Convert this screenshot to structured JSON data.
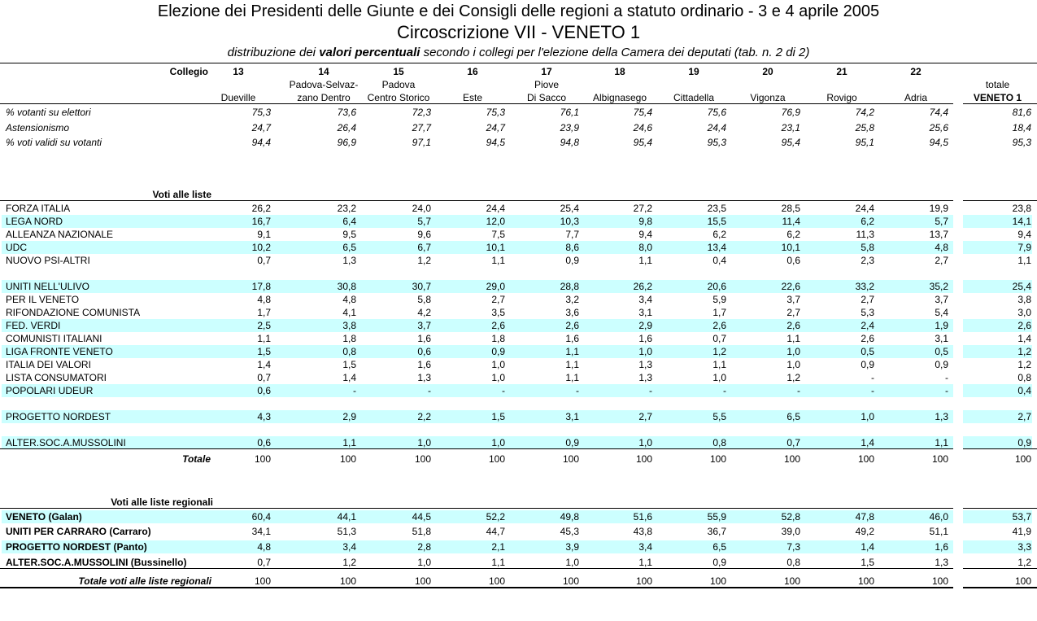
{
  "title": "Elezione dei Presidenti delle Giunte e dei Consigli delle regioni a statuto ordinario - 3 e 4 aprile 2005",
  "subtitle": "Circoscrizione VII - VENETO 1",
  "description_a": "distribuzione dei ",
  "description_b": "valori percentuali",
  "description_c": " secondo i collegi per l'elezione della Camera dei deputati (tab. n. 2 di 2)",
  "collegio_label": "Collegio",
  "columns": [
    {
      "num": "13",
      "l1": "",
      "l2": "Dueville"
    },
    {
      "num": "14",
      "l1": "Padova-Selvaz-",
      "l2": "zano Dentro"
    },
    {
      "num": "15",
      "l1": "Padova",
      "l2": "Centro Storico"
    },
    {
      "num": "16",
      "l1": "",
      "l2": "Este"
    },
    {
      "num": "17",
      "l1": "Piove",
      "l2": "Di Sacco"
    },
    {
      "num": "18",
      "l1": "",
      "l2": "Albignasego"
    },
    {
      "num": "19",
      "l1": "",
      "l2": "Cittadella"
    },
    {
      "num": "20",
      "l1": "",
      "l2": "Vigonza"
    },
    {
      "num": "21",
      "l1": "",
      "l2": "Rovigo"
    },
    {
      "num": "22",
      "l1": "",
      "l2": "Adria"
    }
  ],
  "total_col": {
    "l1": "totale",
    "l2": "VENETO 1"
  },
  "stats": [
    {
      "label": "% votanti su elettori",
      "values": [
        "75,3",
        "73,6",
        "72,3",
        "75,3",
        "76,1",
        "75,4",
        "75,6",
        "76,9",
        "74,2",
        "74,4"
      ],
      "total": "81,6"
    },
    {
      "label": "Astensionismo",
      "values": [
        "24,7",
        "26,4",
        "27,7",
        "24,7",
        "23,9",
        "24,6",
        "24,4",
        "23,1",
        "25,8",
        "25,6"
      ],
      "total": "18,4"
    },
    {
      "label": "% voti validi su votanti",
      "values": [
        "94,4",
        "96,9",
        "97,1",
        "94,5",
        "94,8",
        "95,4",
        "95,3",
        "95,4",
        "95,1",
        "94,5"
      ],
      "total": "95,3"
    }
  ],
  "lists_heading": "Voti alle liste",
  "lists": [
    {
      "label": "FORZA ITALIA",
      "values": [
        "26,2",
        "23,2",
        "24,0",
        "24,4",
        "25,4",
        "27,2",
        "23,5",
        "28,5",
        "24,4",
        "19,9"
      ],
      "total": "23,8"
    },
    {
      "label": "LEGA NORD",
      "values": [
        "16,7",
        "6,4",
        "5,7",
        "12,0",
        "10,3",
        "9,8",
        "15,5",
        "11,4",
        "6,2",
        "5,7"
      ],
      "total": "14,1"
    },
    {
      "label": "ALLEANZA NAZIONALE",
      "values": [
        "9,1",
        "9,5",
        "9,6",
        "7,5",
        "7,7",
        "9,4",
        "6,2",
        "6,2",
        "11,3",
        "13,7"
      ],
      "total": "9,4"
    },
    {
      "label": "UDC",
      "values": [
        "10,2",
        "6,5",
        "6,7",
        "10,1",
        "8,6",
        "8,0",
        "13,4",
        "10,1",
        "5,8",
        "4,8"
      ],
      "total": "7,9"
    },
    {
      "label": "NUOVO PSI-ALTRI",
      "values": [
        "0,7",
        "1,3",
        "1,2",
        "1,1",
        "0,9",
        "1,1",
        "0,4",
        "0,6",
        "2,3",
        "2,7"
      ],
      "total": "1,1"
    },
    {
      "label": "UNITI NELL'ULIVO",
      "values": [
        "17,8",
        "30,8",
        "30,7",
        "29,0",
        "28,8",
        "26,2",
        "20,6",
        "22,6",
        "33,2",
        "35,2"
      ],
      "total": "25,4"
    },
    {
      "label": "PER IL VENETO",
      "values": [
        "4,8",
        "4,8",
        "5,8",
        "2,7",
        "3,2",
        "3,4",
        "5,9",
        "3,7",
        "2,7",
        "3,7"
      ],
      "total": "3,8"
    },
    {
      "label": "RIFONDAZIONE COMUNISTA",
      "values": [
        "1,7",
        "4,1",
        "4,2",
        "3,5",
        "3,6",
        "3,1",
        "1,7",
        "2,7",
        "5,3",
        "5,4"
      ],
      "total": "3,0"
    },
    {
      "label": "FED. VERDI",
      "values": [
        "2,5",
        "3,8",
        "3,7",
        "2,6",
        "2,6",
        "2,9",
        "2,6",
        "2,6",
        "2,4",
        "1,9"
      ],
      "total": "2,6"
    },
    {
      "label": "COMUNISTI ITALIANI",
      "values": [
        "1,1",
        "1,8",
        "1,6",
        "1,8",
        "1,6",
        "1,6",
        "0,7",
        "1,1",
        "2,6",
        "3,1"
      ],
      "total": "1,4"
    },
    {
      "label": "LIGA FRONTE VENETO",
      "values": [
        "1,5",
        "0,8",
        "0,6",
        "0,9",
        "1,1",
        "1,0",
        "1,2",
        "1,0",
        "0,5",
        "0,5"
      ],
      "total": "1,2"
    },
    {
      "label": "ITALIA DEI VALORI",
      "values": [
        "1,4",
        "1,5",
        "1,6",
        "1,0",
        "1,1",
        "1,3",
        "1,1",
        "1,0",
        "0,9",
        "0,9"
      ],
      "total": "1,2"
    },
    {
      "label": "LISTA CONSUMATORI",
      "values": [
        "0,7",
        "1,4",
        "1,3",
        "1,0",
        "1,1",
        "1,3",
        "1,0",
        "1,2",
        "-",
        "-"
      ],
      "total": "0,8"
    },
    {
      "label": "POPOLARI UDEUR",
      "values": [
        "0,6",
        "-",
        "-",
        "-",
        "-",
        "-",
        "-",
        "-",
        "-",
        "-"
      ],
      "total": "0,4"
    },
    {
      "label": "PROGETTO NORDEST",
      "values": [
        "4,3",
        "2,9",
        "2,2",
        "1,5",
        "3,1",
        "2,7",
        "5,5",
        "6,5",
        "1,0",
        "1,3"
      ],
      "total": "2,7"
    },
    {
      "label": "ALTER.SOC.A.MUSSOLINI",
      "values": [
        "0,6",
        "1,1",
        "1,0",
        "1,0",
        "0,9",
        "1,0",
        "0,8",
        "0,7",
        "1,4",
        "1,1"
      ],
      "total": "0,9"
    }
  ],
  "lists_total": {
    "label": "Totale",
    "values": [
      "100",
      "100",
      "100",
      "100",
      "100",
      "100",
      "100",
      "100",
      "100",
      "100"
    ],
    "total": "100"
  },
  "regional_heading": "Voti alle liste regionali",
  "regional": [
    {
      "label": "VENETO (Galan)",
      "values": [
        "60,4",
        "44,1",
        "44,5",
        "52,2",
        "49,8",
        "51,6",
        "55,9",
        "52,8",
        "47,8",
        "46,0"
      ],
      "total": "53,7"
    },
    {
      "label": "UNITI PER CARRARO (Carraro)",
      "values": [
        "34,1",
        "51,3",
        "51,8",
        "44,7",
        "45,3",
        "43,8",
        "36,7",
        "39,0",
        "49,2",
        "51,1"
      ],
      "total": "41,9"
    },
    {
      "label": "PROGETTO NORDEST (Panto)",
      "values": [
        "4,8",
        "3,4",
        "2,8",
        "2,1",
        "3,9",
        "3,4",
        "6,5",
        "7,3",
        "1,4",
        "1,6"
      ],
      "total": "3,3"
    },
    {
      "label": "ALTER.SOC.A.MUSSOLINI (Bussinello)",
      "values": [
        "0,7",
        "1,2",
        "1,0",
        "1,1",
        "1,0",
        "1,1",
        "0,9",
        "0,8",
        "1,5",
        "1,3"
      ],
      "total": "1,2"
    }
  ],
  "regional_total": {
    "label": "Totale voti alle liste regionali",
    "values": [
      "100",
      "100",
      "100",
      "100",
      "100",
      "100",
      "100",
      "100",
      "100",
      "100"
    ],
    "total": "100"
  },
  "colors": {
    "band": "#ccffff"
  }
}
